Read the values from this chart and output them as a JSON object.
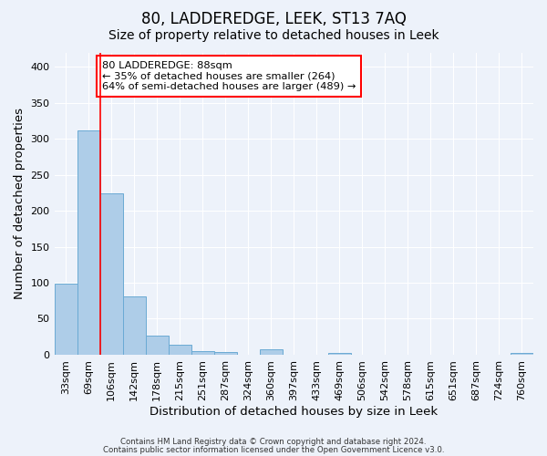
{
  "title": "80, LADDEREDGE, LEEK, ST13 7AQ",
  "subtitle": "Size of property relative to detached houses in Leek",
  "xlabel": "Distribution of detached houses by size in Leek",
  "ylabel": "Number of detached properties",
  "bar_labels": [
    "33sqm",
    "69sqm",
    "106sqm",
    "142sqm",
    "178sqm",
    "215sqm",
    "251sqm",
    "287sqm",
    "324sqm",
    "360sqm",
    "397sqm",
    "433sqm",
    "469sqm",
    "506sqm",
    "542sqm",
    "578sqm",
    "615sqm",
    "651sqm",
    "687sqm",
    "724sqm",
    "760sqm"
  ],
  "bar_values": [
    99,
    312,
    224,
    81,
    26,
    14,
    5,
    4,
    0,
    7,
    0,
    0,
    3,
    0,
    0,
    0,
    0,
    0,
    0,
    0,
    3
  ],
  "bar_color": "#aecde8",
  "bar_edge_color": "#6aaad4",
  "ylim": [
    0,
    420
  ],
  "yticks": [
    0,
    50,
    100,
    150,
    200,
    250,
    300,
    350,
    400
  ],
  "annotation_text": "80 LADDEREDGE: 88sqm\n← 35% of detached houses are smaller (264)\n64% of semi-detached houses are larger (489) →",
  "footer_line1": "Contains HM Land Registry data © Crown copyright and database right 2024.",
  "footer_line2": "Contains public sector information licensed under the Open Government Licence v3.0.",
  "bg_color": "#edf2fa",
  "plot_bg_color": "#edf2fa",
  "grid_color": "#ffffff",
  "title_fontsize": 12,
  "subtitle_fontsize": 10,
  "axis_label_fontsize": 9.5,
  "tick_fontsize": 8
}
